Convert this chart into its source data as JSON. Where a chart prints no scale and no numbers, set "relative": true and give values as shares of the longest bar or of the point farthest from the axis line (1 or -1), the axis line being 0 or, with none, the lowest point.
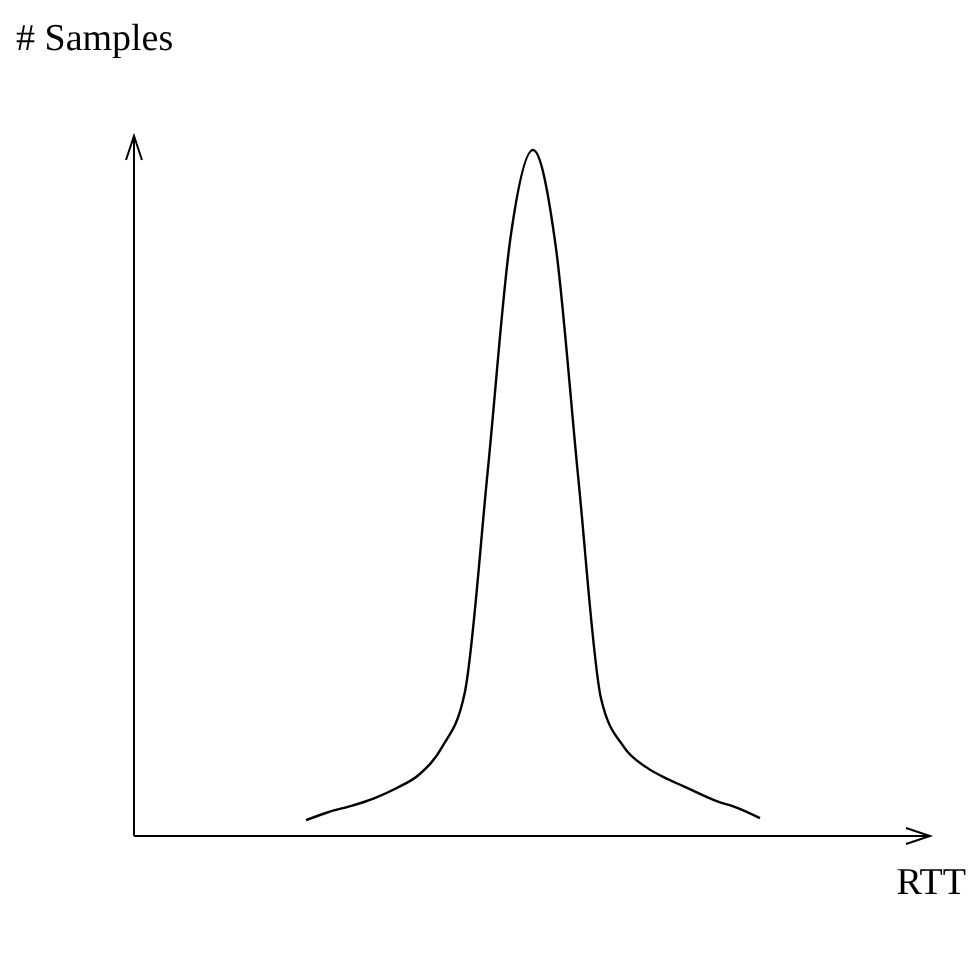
{
  "chart_data": {
    "type": "line",
    "relative": true,
    "xlabel": "RTT",
    "ylabel": "# Samples",
    "color": "#000000",
    "categories": [
      null,
      null,
      null,
      null,
      null,
      null,
      null,
      null,
      null,
      null,
      null,
      null,
      null,
      null,
      null,
      null,
      null,
      null,
      null,
      null,
      null
    ],
    "values": [
      0.023,
      0.035,
      0.044,
      0.055,
      0.07,
      0.09,
      0.13,
      0.21,
      0.53,
      0.87,
      1,
      0.86,
      0.52,
      0.2,
      0.13,
      0.1,
      0.082,
      0.067,
      0.052,
      0.041,
      0.026
    ],
    "marker": "none",
    "line_style": "solid"
  }
}
